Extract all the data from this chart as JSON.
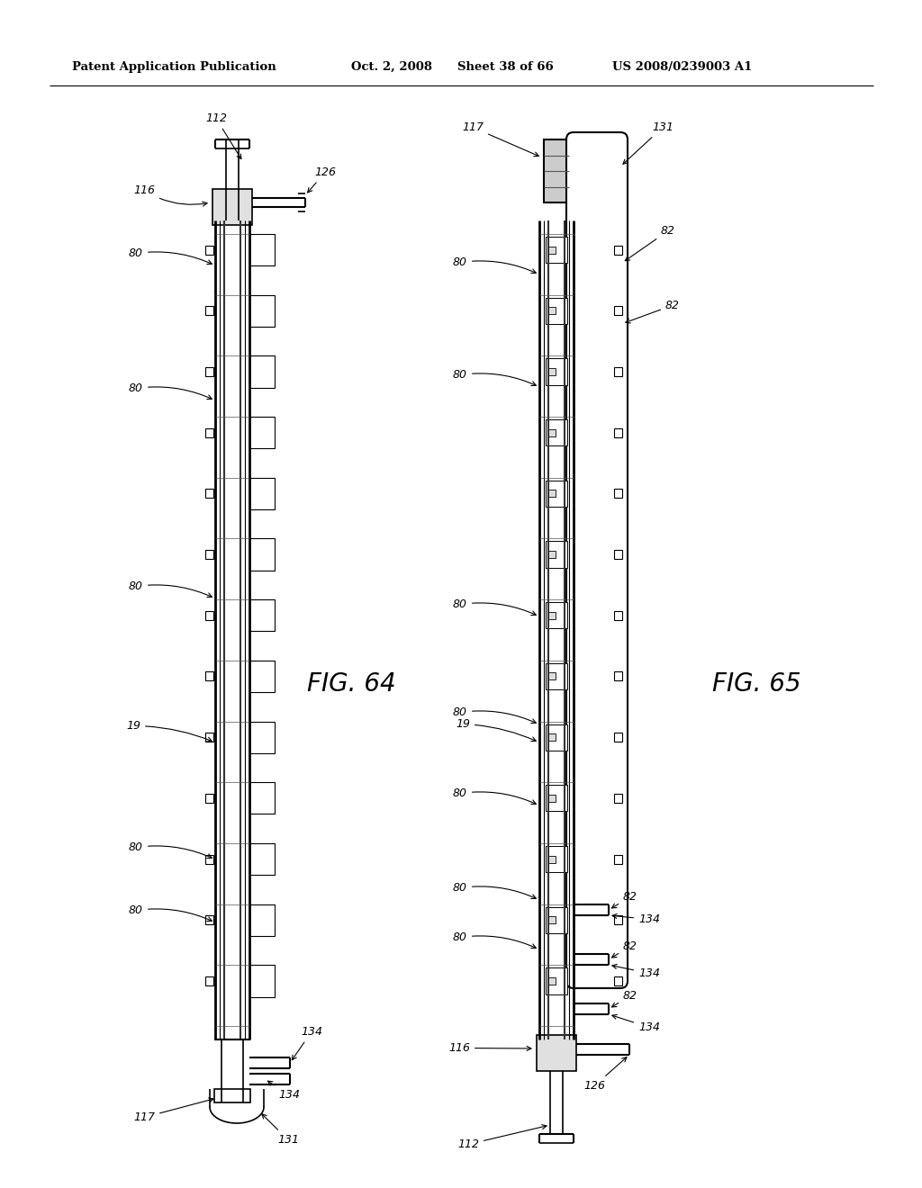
{
  "header_left": "Patent Application Publication",
  "header_mid": "Oct. 2, 2008   Sheet 38 of 66",
  "header_right": "US 2008/0239003 A1",
  "fig64_label": "FIG. 64",
  "fig65_label": "FIG. 65",
  "bg_color": "#ffffff"
}
